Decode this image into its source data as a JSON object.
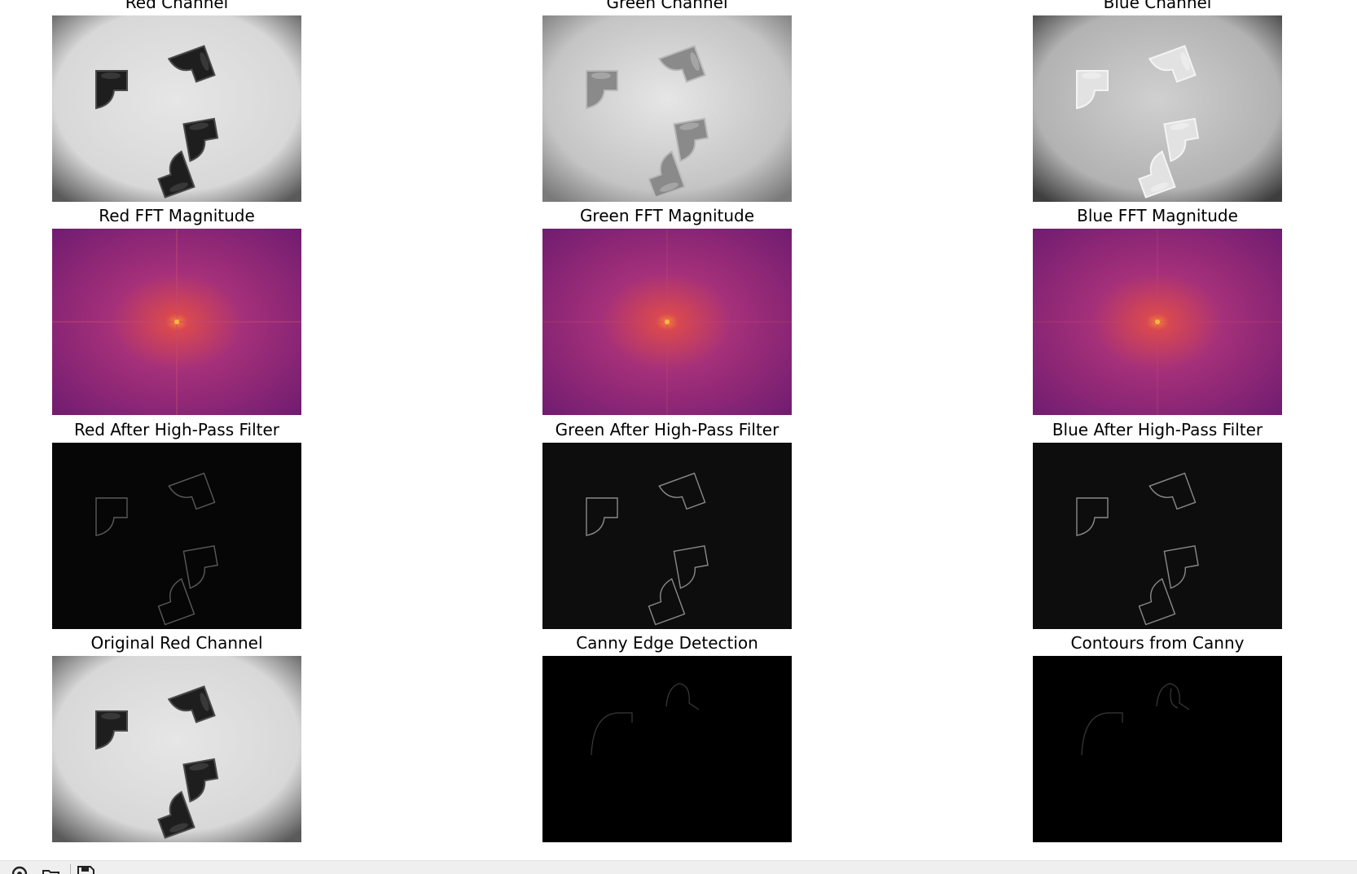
{
  "figure": {
    "panels": [
      {
        "title": "Red Channel",
        "kind": "gray-photo",
        "variant": "red"
      },
      {
        "title": "Green Channel",
        "kind": "gray-photo",
        "variant": "green"
      },
      {
        "title": "Blue Channel",
        "kind": "gray-photo",
        "variant": "blue"
      },
      {
        "title": "Red FFT Magnitude",
        "kind": "fft",
        "variant": "red"
      },
      {
        "title": "Green FFT Magnitude",
        "kind": "fft",
        "variant": "green"
      },
      {
        "title": "Blue FFT Magnitude",
        "kind": "fft",
        "variant": "blue"
      },
      {
        "title": "Red After High-Pass Filter",
        "kind": "highpass",
        "variant": "red"
      },
      {
        "title": "Green After High-Pass Filter",
        "kind": "highpass",
        "variant": "green"
      },
      {
        "title": "Blue After High-Pass Filter",
        "kind": "highpass",
        "variant": "blue"
      },
      {
        "title": "Original Red Channel",
        "kind": "gray-photo",
        "variant": "red"
      },
      {
        "title": "Canny Edge Detection",
        "kind": "edges",
        "variant": "canny"
      },
      {
        "title": "Contours from Canny",
        "kind": "edges",
        "variant": "contours"
      }
    ]
  },
  "toolbar": {
    "tools": [
      {
        "name": "home-button",
        "icon": "home-icon"
      },
      {
        "name": "open-button",
        "icon": "folder-icon"
      },
      {
        "name": "save-button",
        "icon": "save-icon"
      }
    ]
  },
  "colors": {
    "figure_background": "#ffffff",
    "toolbar_background": "#efefef",
    "fft_edge": "#6b1a6f",
    "fft_mid": "#a5307a",
    "fft_center": "#f3813b"
  }
}
